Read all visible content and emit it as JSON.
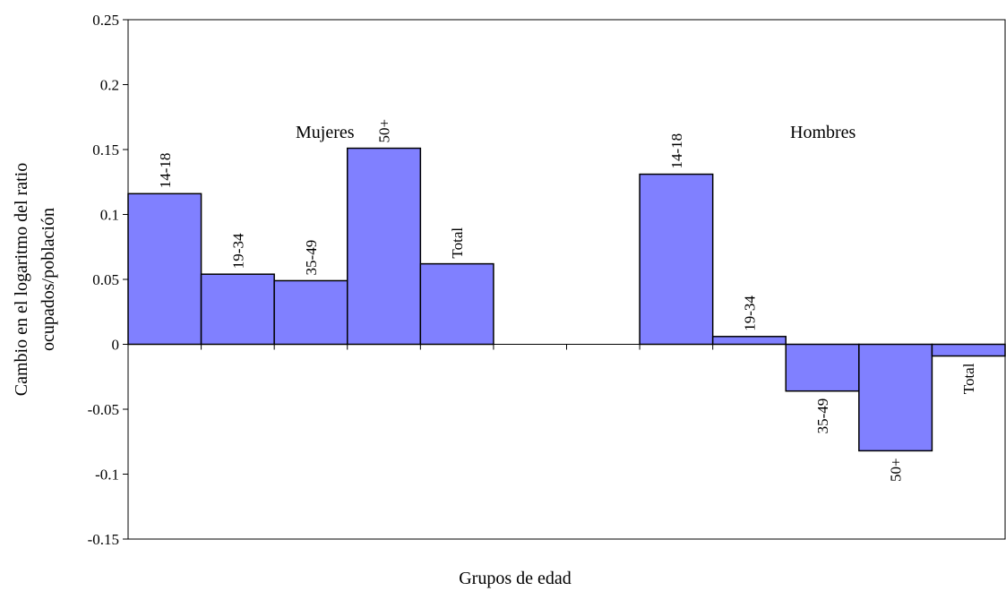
{
  "chart_data": {
    "type": "bar",
    "xlabel": "Grupos de edad",
    "ylabel": [
      "Cambio en el logaritmo del ratio",
      "ocupados/población"
    ],
    "annotations": [
      "Mujeres",
      "Hombres"
    ],
    "categories": [
      "14-18",
      "19-34",
      "35-49",
      "50+",
      "Total",
      null,
      null,
      "14-18",
      "19-34",
      "35-49",
      "50+",
      "Total"
    ],
    "values": [
      0.116,
      0.054,
      0.049,
      0.151,
      0.062,
      null,
      null,
      0.131,
      0.006,
      -0.036,
      -0.082,
      -0.009
    ],
    "color": "#8080ff",
    "ylim": [
      -0.15,
      0.25
    ],
    "yticks": [
      -0.15,
      -0.1,
      -0.05,
      0,
      0.05,
      0.1,
      0.15,
      0.2,
      0.25
    ],
    "grid": false
  }
}
